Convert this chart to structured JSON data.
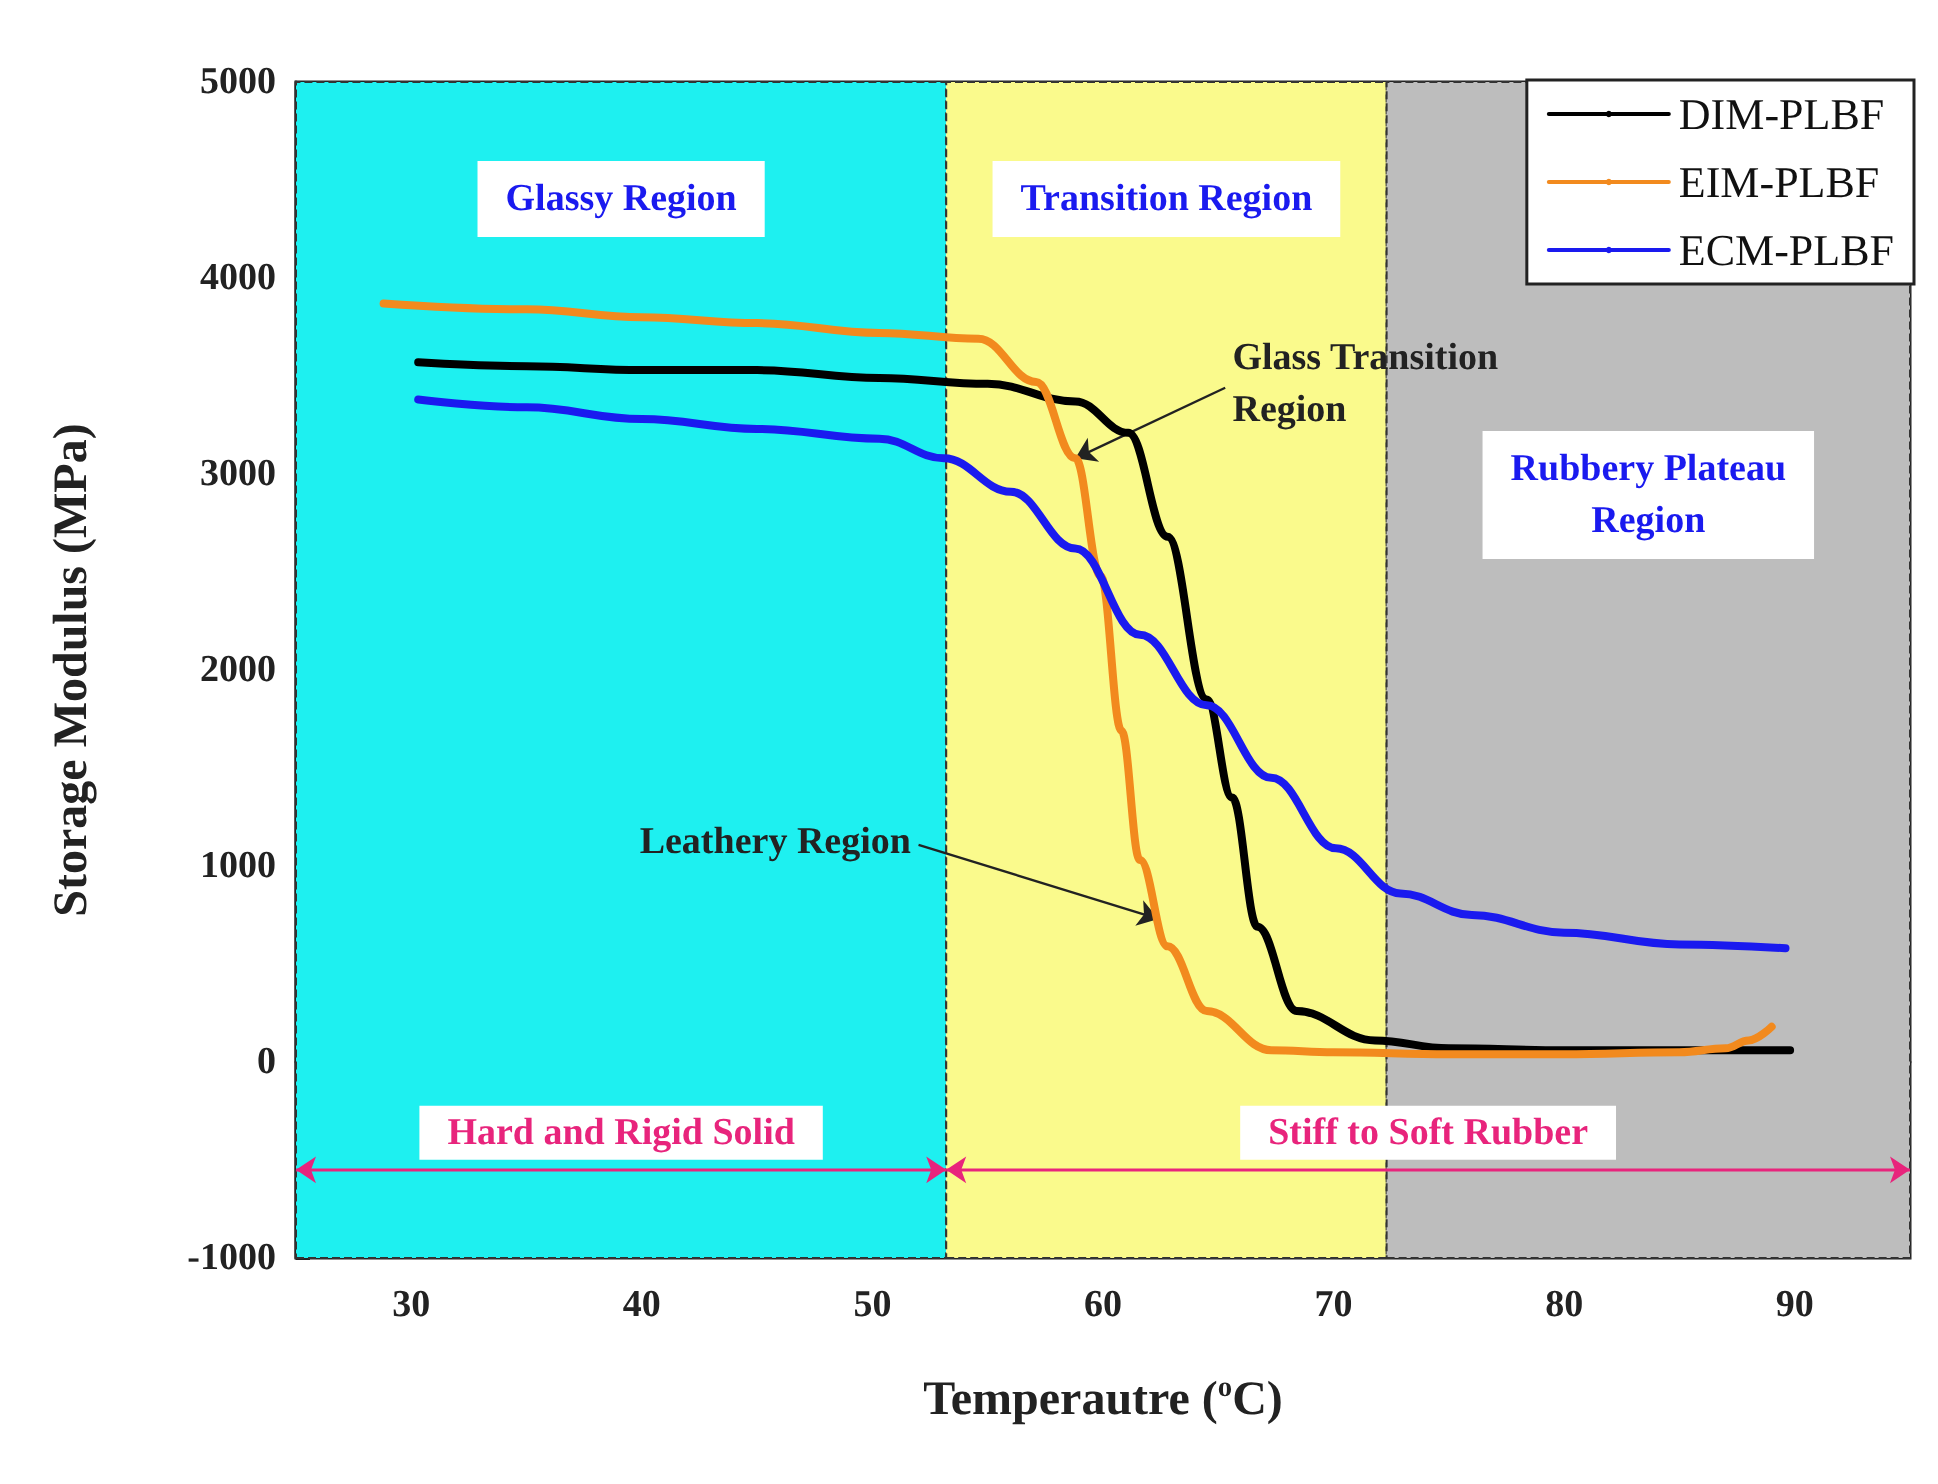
{
  "chart_data": {
    "type": "line",
    "xlabel": "Temperautre ($^{o}$C)",
    "ylabel": "Storage Modulus (MPa)",
    "xlim": [
      25,
      95
    ],
    "xticks": [
      30,
      40,
      50,
      60,
      70,
      80,
      90
    ],
    "ylim": [
      -1000,
      5000
    ],
    "yticks": [
      -1000,
      0,
      1000,
      2000,
      3000,
      4000,
      5000
    ],
    "series": [
      {
        "name": "DIM-PLBF",
        "color": "#000000",
        "x": [
          30.3,
          35,
          40,
          45,
          50.3,
          55,
          58.8,
          61.1,
          62.8,
          64.5,
          65.6,
          66.7,
          68.4,
          71.8,
          75,
          80,
          85,
          89.8
        ],
        "values": [
          3570,
          3550,
          3530,
          3530,
          3490,
          3460,
          3370,
          3210,
          2680,
          1850,
          1350,
          690,
          260,
          110,
          70,
          60,
          60,
          60
        ]
      },
      {
        "name": "EIM-PLBF",
        "color": "#f28a1e",
        "x": [
          28.8,
          35,
          40,
          45,
          50.3,
          54.6,
          57.1,
          58.8,
          59.9,
          60.8,
          61.6,
          62.8,
          64.5,
          67.3,
          70,
          75,
          80,
          85,
          87,
          88,
          89
        ],
        "values": [
          3870,
          3840,
          3800,
          3770,
          3720,
          3690,
          3470,
          3080,
          2480,
          1690,
          1030,
          590,
          260,
          60,
          50,
          40,
          40,
          50,
          70,
          110,
          180
        ]
      },
      {
        "name": "ECM-PLBF",
        "color": "#1a1aef",
        "x": [
          30.3,
          35,
          40,
          45,
          50.3,
          53.1,
          56,
          58.8,
          61.6,
          64.5,
          67.3,
          70.1,
          72.9,
          76,
          80,
          85,
          89.6
        ],
        "values": [
          3380,
          3340,
          3280,
          3230,
          3180,
          3080,
          2910,
          2620,
          2180,
          1820,
          1450,
          1090,
          860,
          750,
          660,
          600,
          580
        ]
      }
    ],
    "bands": [
      {
        "axis": "x",
        "from": 25,
        "to": 53.2,
        "label": "Glassy Region",
        "color": "#1ef0f0"
      },
      {
        "axis": "x",
        "from": 53.2,
        "to": 72.3,
        "label": "Transition Region",
        "color": "#fafa8c"
      },
      {
        "axis": "x",
        "from": 72.3,
        "to": 95,
        "label": "Rubbery Plateau Region",
        "color": "#bdbdbd"
      }
    ],
    "annotations": [
      {
        "text": "Glass Transition Region",
        "x": 58.8,
        "y": 3080
      },
      {
        "text": "Leathery Region",
        "x": 62.4,
        "y": 730
      },
      "Hard and Rigid Solid",
      "Stiff to Soft Rubber"
    ],
    "legend": "top right",
    "line_style": "solid",
    "marker": "none"
  }
}
